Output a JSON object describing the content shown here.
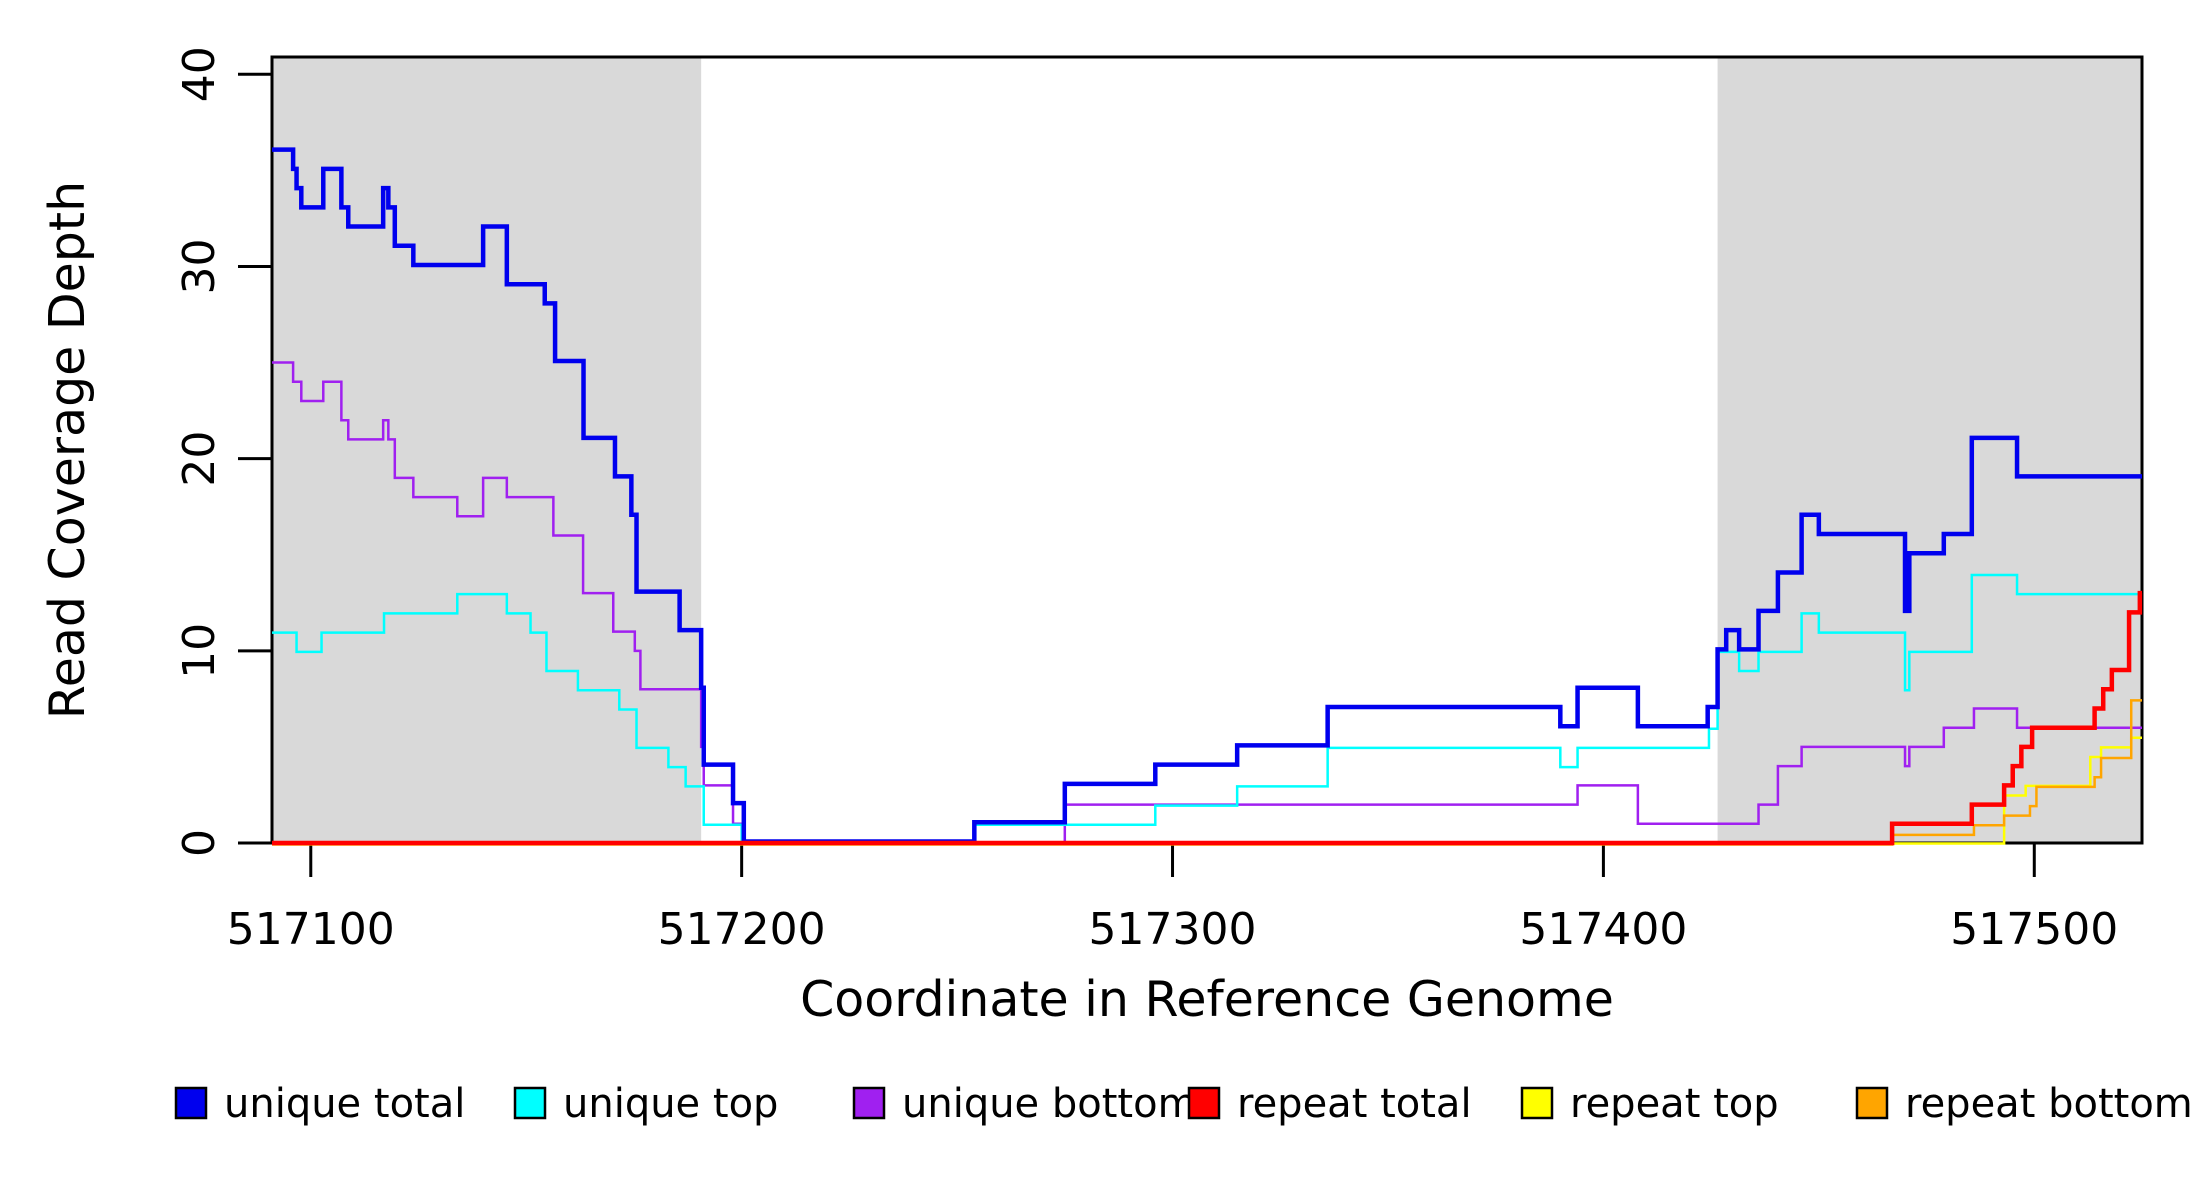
{
  "chart_data": {
    "type": "line",
    "step": true,
    "title": "",
    "xlabel": "Coordinate in Reference Genome",
    "ylabel": "Read Coverage Depth",
    "xlim": [
      517091,
      517525
    ],
    "ylim": [
      0,
      40.9
    ],
    "x_ticks": [
      517100,
      517200,
      517300,
      517400,
      517500
    ],
    "y_ticks": [
      0,
      10,
      20,
      30,
      40
    ],
    "grid": false,
    "legend_position": "bottom",
    "background_color": "#FFFFFF",
    "axis_color": "#000000",
    "shade_color": "#D9D9D9",
    "shaded_regions": [
      [
        517091,
        517190.6
      ],
      [
        517426.5,
        517525
      ]
    ],
    "series": [
      {
        "name": "unique total",
        "color": "#0000EE",
        "line_width": 4.5,
        "points": [
          [
            517091,
            36
          ],
          [
            517095.9,
            35
          ],
          [
            517096.7,
            34
          ],
          [
            517097.8,
            33
          ],
          [
            517102.9,
            35
          ],
          [
            517107.1,
            33
          ],
          [
            517108.7,
            32
          ],
          [
            517116.8,
            34
          ],
          [
            517118,
            33
          ],
          [
            517119.5,
            31
          ],
          [
            517123.8,
            30
          ],
          [
            517140,
            32
          ],
          [
            517145.5,
            29
          ],
          [
            517154.3,
            28
          ],
          [
            517156.7,
            25
          ],
          [
            517163.3,
            21
          ],
          [
            517170.6,
            19
          ],
          [
            517174.4,
            17
          ],
          [
            517175.6,
            13
          ],
          [
            517185.6,
            11
          ],
          [
            517190.6,
            8
          ],
          [
            517191.2,
            4
          ],
          [
            517198,
            2
          ],
          [
            517200.5,
            0
          ],
          [
            517254,
            1
          ],
          [
            517275,
            3
          ],
          [
            517296,
            4
          ],
          [
            517315,
            5
          ],
          [
            517336,
            7
          ],
          [
            517390,
            6
          ],
          [
            517394,
            8
          ],
          [
            517408,
            6
          ],
          [
            517424.2,
            7
          ],
          [
            517426.5,
            10
          ],
          [
            517428.5,
            11
          ],
          [
            517431.5,
            10
          ],
          [
            517436,
            12
          ],
          [
            517440.5,
            14
          ],
          [
            517446,
            17
          ],
          [
            517450,
            16
          ],
          [
            517470,
            12
          ],
          [
            517471,
            15
          ],
          [
            517479,
            16
          ],
          [
            517485.5,
            21
          ],
          [
            517496,
            19
          ],
          [
            517525,
            19
          ]
        ]
      },
      {
        "name": "unique top",
        "color": "#00FFFF",
        "line_width": 2.5,
        "points": [
          [
            517091,
            11
          ],
          [
            517096.7,
            10
          ],
          [
            517102.5,
            11
          ],
          [
            517117,
            12
          ],
          [
            517134,
            13
          ],
          [
            517145.5,
            12
          ],
          [
            517151,
            11
          ],
          [
            517154.7,
            9
          ],
          [
            517162,
            8
          ],
          [
            517171.6,
            7
          ],
          [
            517175.6,
            5
          ],
          [
            517183,
            4
          ],
          [
            517187,
            3
          ],
          [
            517191.2,
            1
          ],
          [
            517200,
            0
          ],
          [
            517254,
            1
          ],
          [
            517296,
            2
          ],
          [
            517315,
            3
          ],
          [
            517336,
            5
          ],
          [
            517390,
            4
          ],
          [
            517394,
            5
          ],
          [
            517424.5,
            6
          ],
          [
            517426.5,
            10
          ],
          [
            517431.5,
            9
          ],
          [
            517436,
            10
          ],
          [
            517446,
            12
          ],
          [
            517450,
            11
          ],
          [
            517470,
            8
          ],
          [
            517471,
            10
          ],
          [
            517485.5,
            14
          ],
          [
            517496,
            13
          ],
          [
            517525,
            13
          ]
        ]
      },
      {
        "name": "unique bottom",
        "color": "#A020F0",
        "line_width": 2.5,
        "points": [
          [
            517091,
            25
          ],
          [
            517095.9,
            24
          ],
          [
            517097.8,
            23
          ],
          [
            517102.9,
            24
          ],
          [
            517107.1,
            22
          ],
          [
            517108.7,
            21
          ],
          [
            517116.8,
            22
          ],
          [
            517118,
            21
          ],
          [
            517119.5,
            19
          ],
          [
            517123.8,
            18
          ],
          [
            517134,
            17
          ],
          [
            517140,
            19
          ],
          [
            517145.5,
            18
          ],
          [
            517156.3,
            16
          ],
          [
            517163.2,
            13
          ],
          [
            517170.2,
            11
          ],
          [
            517175.2,
            10
          ],
          [
            517176.5,
            8
          ],
          [
            517190.6,
            5
          ],
          [
            517191.2,
            3
          ],
          [
            517198,
            1
          ],
          [
            517200.5,
            0
          ],
          [
            517275,
            2
          ],
          [
            517394,
            3
          ],
          [
            517408,
            1
          ],
          [
            517436,
            2
          ],
          [
            517440.5,
            4
          ],
          [
            517446,
            5
          ],
          [
            517470,
            4
          ],
          [
            517471,
            5
          ],
          [
            517479,
            6
          ],
          [
            517486,
            7
          ],
          [
            517496,
            6
          ],
          [
            517525,
            6
          ]
        ]
      },
      {
        "name": "repeat total",
        "color": "#FF0000",
        "line_width": 4.5,
        "points": [
          [
            517091,
            0
          ],
          [
            517467,
            1
          ],
          [
            517485.5,
            2
          ],
          [
            517493,
            3
          ],
          [
            517495,
            4
          ],
          [
            517497,
            5
          ],
          [
            517499.5,
            6
          ],
          [
            517514,
            7
          ],
          [
            517516,
            8
          ],
          [
            517518,
            9
          ],
          [
            517522,
            12
          ],
          [
            517524.5,
            13
          ],
          [
            517525,
            13
          ]
        ]
      },
      {
        "name": "repeat top",
        "color": "#FFFF00",
        "line_width": 2.5,
        "points": [
          [
            517091,
            0
          ],
          [
            517493,
            2.5
          ],
          [
            517498,
            3
          ],
          [
            517513,
            4.5
          ],
          [
            517515.5,
            5
          ],
          [
            517522.5,
            5.5
          ],
          [
            517525,
            5.5
          ]
        ]
      },
      {
        "name": "repeat bottom",
        "color": "#FFA500",
        "line_width": 2.5,
        "points": [
          [
            517091,
            0
          ],
          [
            517467,
            0.5
          ],
          [
            517486,
            1
          ],
          [
            517493,
            1.5
          ],
          [
            517499,
            2
          ],
          [
            517500.5,
            3
          ],
          [
            517514,
            3.5
          ],
          [
            517515.5,
            4.5
          ],
          [
            517522.5,
            7.5
          ],
          [
            517525,
            7.5
          ]
        ]
      }
    ]
  }
}
